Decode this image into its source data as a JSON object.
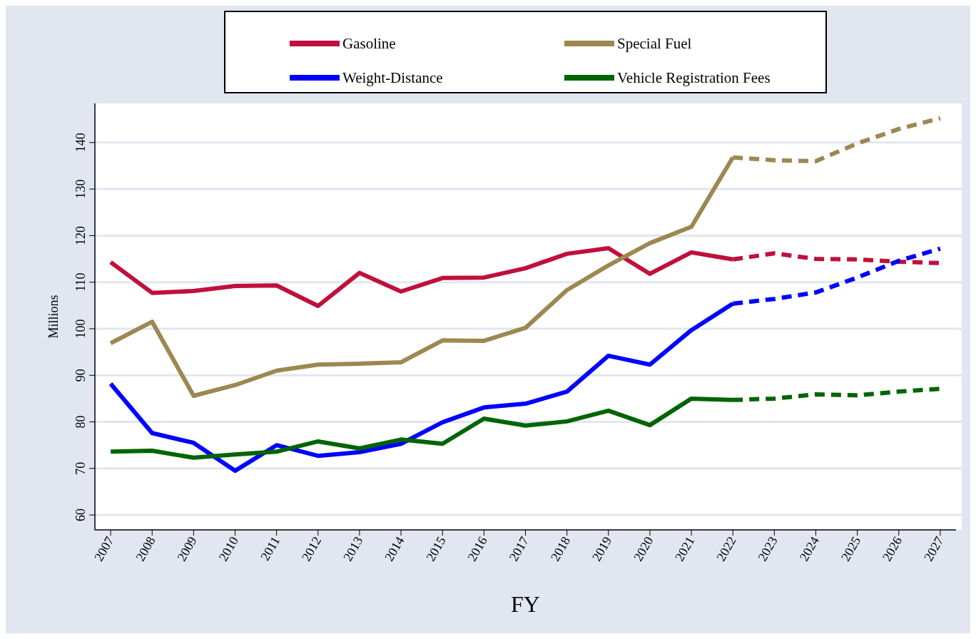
{
  "chart_data": {
    "type": "line",
    "xlabel": "FY",
    "ylabel": "Millions",
    "legend": "top",
    "grid": "y",
    "xlim": [
      2006.62,
      2027.38
    ],
    "xticks": [
      2007,
      2008,
      2009,
      2010,
      2011,
      2012,
      2013,
      2014,
      2015,
      2016,
      2017,
      2018,
      2019,
      2020,
      2021,
      2022,
      2023,
      2024,
      2025,
      2026,
      2027
    ],
    "ylim": [
      56.8,
      148.4
    ],
    "yticks": [
      60,
      70,
      80,
      90,
      100,
      110,
      120,
      130,
      140
    ],
    "series": [
      {
        "name": "Gasoline",
        "color": "#c0103c",
        "line_style": "solid",
        "x": [
          2007,
          2008,
          2009,
          2010,
          2011,
          2012,
          2013,
          2014,
          2015,
          2016,
          2017,
          2018,
          2019,
          2020,
          2021,
          2022
        ],
        "values": [
          114.3,
          107.7,
          108.1,
          109.2,
          109.3,
          104.9,
          112,
          108,
          110.9,
          111,
          113,
          116.1,
          117.3,
          111.8,
          116.4,
          114.9
        ]
      },
      {
        "name": "Special Fuel",
        "color": "#9c8850",
        "line_style": "solid",
        "x": [
          2007,
          2008,
          2009,
          2010,
          2011,
          2012,
          2013,
          2014,
          2015,
          2016,
          2017,
          2018,
          2019,
          2020,
          2021,
          2022
        ],
        "values": [
          96.9,
          101.5,
          85.6,
          87.9,
          91,
          92.3,
          92.5,
          92.8,
          97.5,
          97.4,
          100.2,
          108.3,
          113.6,
          118.4,
          121.9,
          136.8
        ]
      },
      {
        "name": "Weight-Distance",
        "color": "#0000ff",
        "line_style": "solid",
        "x": [
          2007,
          2008,
          2009,
          2010,
          2011,
          2012,
          2013,
          2014,
          2015,
          2016,
          2017,
          2018,
          2019,
          2020,
          2021,
          2022
        ],
        "values": [
          88.2,
          77.6,
          75.5,
          69.5,
          75,
          72.7,
          73.5,
          75.3,
          79.9,
          83.1,
          83.9,
          86.5,
          94.2,
          92.3,
          99.7,
          105.4
        ]
      },
      {
        "name": "Vehicle Registration Fees",
        "color": "#006400",
        "line_style": "solid",
        "x": [
          2007,
          2008,
          2009,
          2010,
          2011,
          2012,
          2013,
          2014,
          2015,
          2016,
          2017,
          2018,
          2019,
          2020,
          2021,
          2022
        ],
        "values": [
          73.6,
          73.8,
          72.3,
          73,
          73.6,
          75.8,
          74.3,
          76.2,
          75.3,
          80.7,
          79.2,
          80.1,
          82.4,
          79.3,
          85,
          84.7
        ]
      },
      {
        "color": "#c0103c",
        "line_style": "dashed",
        "x": [
          2022,
          2023,
          2024,
          2025,
          2026,
          2027
        ],
        "values": [
          114.9,
          116.2,
          115,
          114.9,
          114.4,
          114.1
        ]
      },
      {
        "color": "#9c8850",
        "line_style": "dashed",
        "x": [
          2022,
          2023,
          2024,
          2025,
          2026,
          2027
        ],
        "values": [
          136.8,
          136.2,
          136,
          139.8,
          142.9,
          145.2
        ]
      },
      {
        "color": "#0000ff",
        "line_style": "dashed",
        "x": [
          2022,
          2023,
          2024,
          2025,
          2026,
          2027
        ],
        "values": [
          105.4,
          106.4,
          107.8,
          111,
          114.6,
          117.2
        ]
      },
      {
        "color": "#006400",
        "line_style": "dashed",
        "x": [
          2022,
          2023,
          2024,
          2025,
          2026,
          2027
        ],
        "values": [
          84.7,
          85,
          85.9,
          85.7,
          86.5,
          87.1
        ]
      }
    ]
  }
}
